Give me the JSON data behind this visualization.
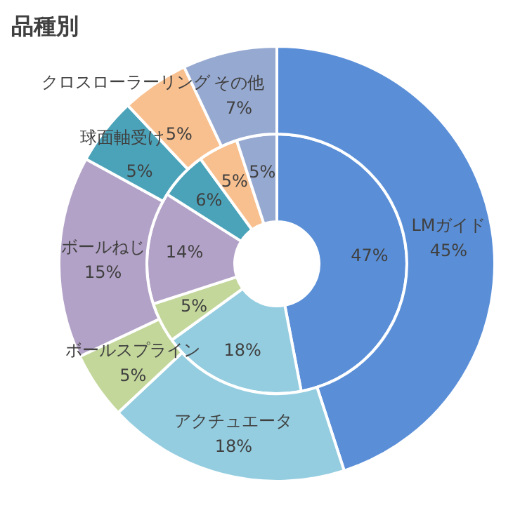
{
  "chart_data": {
    "type": "donut",
    "title": "品種別",
    "categories": [
      "LMガイド",
      "アクチュエータ",
      "ボールスプライン",
      "ボールねじ",
      "球面軸受け",
      "クロスローラーリング",
      "その他"
    ],
    "colors": [
      "#5a8fd8",
      "#94cde0",
      "#c3d79b",
      "#b3a2c7",
      "#4ba3b9",
      "#f9c08f",
      "#96a9d1"
    ],
    "series": [
      {
        "values": [
          47,
          18,
          5,
          14,
          6,
          5,
          5
        ],
        "value_labels": [
          "47%",
          "18%",
          "5%",
          "14%",
          "6%",
          "5%",
          "5%"
        ]
      },
      {
        "values": [
          45,
          18,
          5,
          15,
          5,
          5,
          7
        ],
        "value_labels": [
          "45%",
          "18%",
          "5%",
          "15%",
          "5%",
          "5%",
          "7%"
        ]
      }
    ]
  }
}
